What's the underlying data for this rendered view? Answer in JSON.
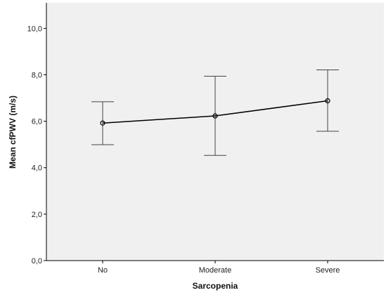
{
  "chart_data": {
    "type": "line",
    "title": "",
    "xlabel": "Sarcopenia",
    "ylabel": "Mean cfPWV (m/s)",
    "categories": [
      "No",
      "Moderate",
      "Severe"
    ],
    "series": [
      {
        "values": [
          5.92,
          6.23,
          6.88
        ],
        "error_bars": {
          "lower": [
            4.99,
            4.53,
            5.57
          ],
          "upper": [
            6.84,
            7.94,
            8.21
          ]
        }
      }
    ],
    "ylim": [
      0,
      11.1
    ],
    "yticks": [
      0,
      2,
      4,
      6,
      8,
      10
    ],
    "ytick_labels": [
      "0,0",
      "2,0",
      "4,0",
      "6,0",
      "8,0",
      "10,0"
    ],
    "grid": false,
    "legend": "none",
    "colors": {
      "plot_background": "#f0f0f0",
      "line": "#000000",
      "axis": "#000000"
    }
  }
}
